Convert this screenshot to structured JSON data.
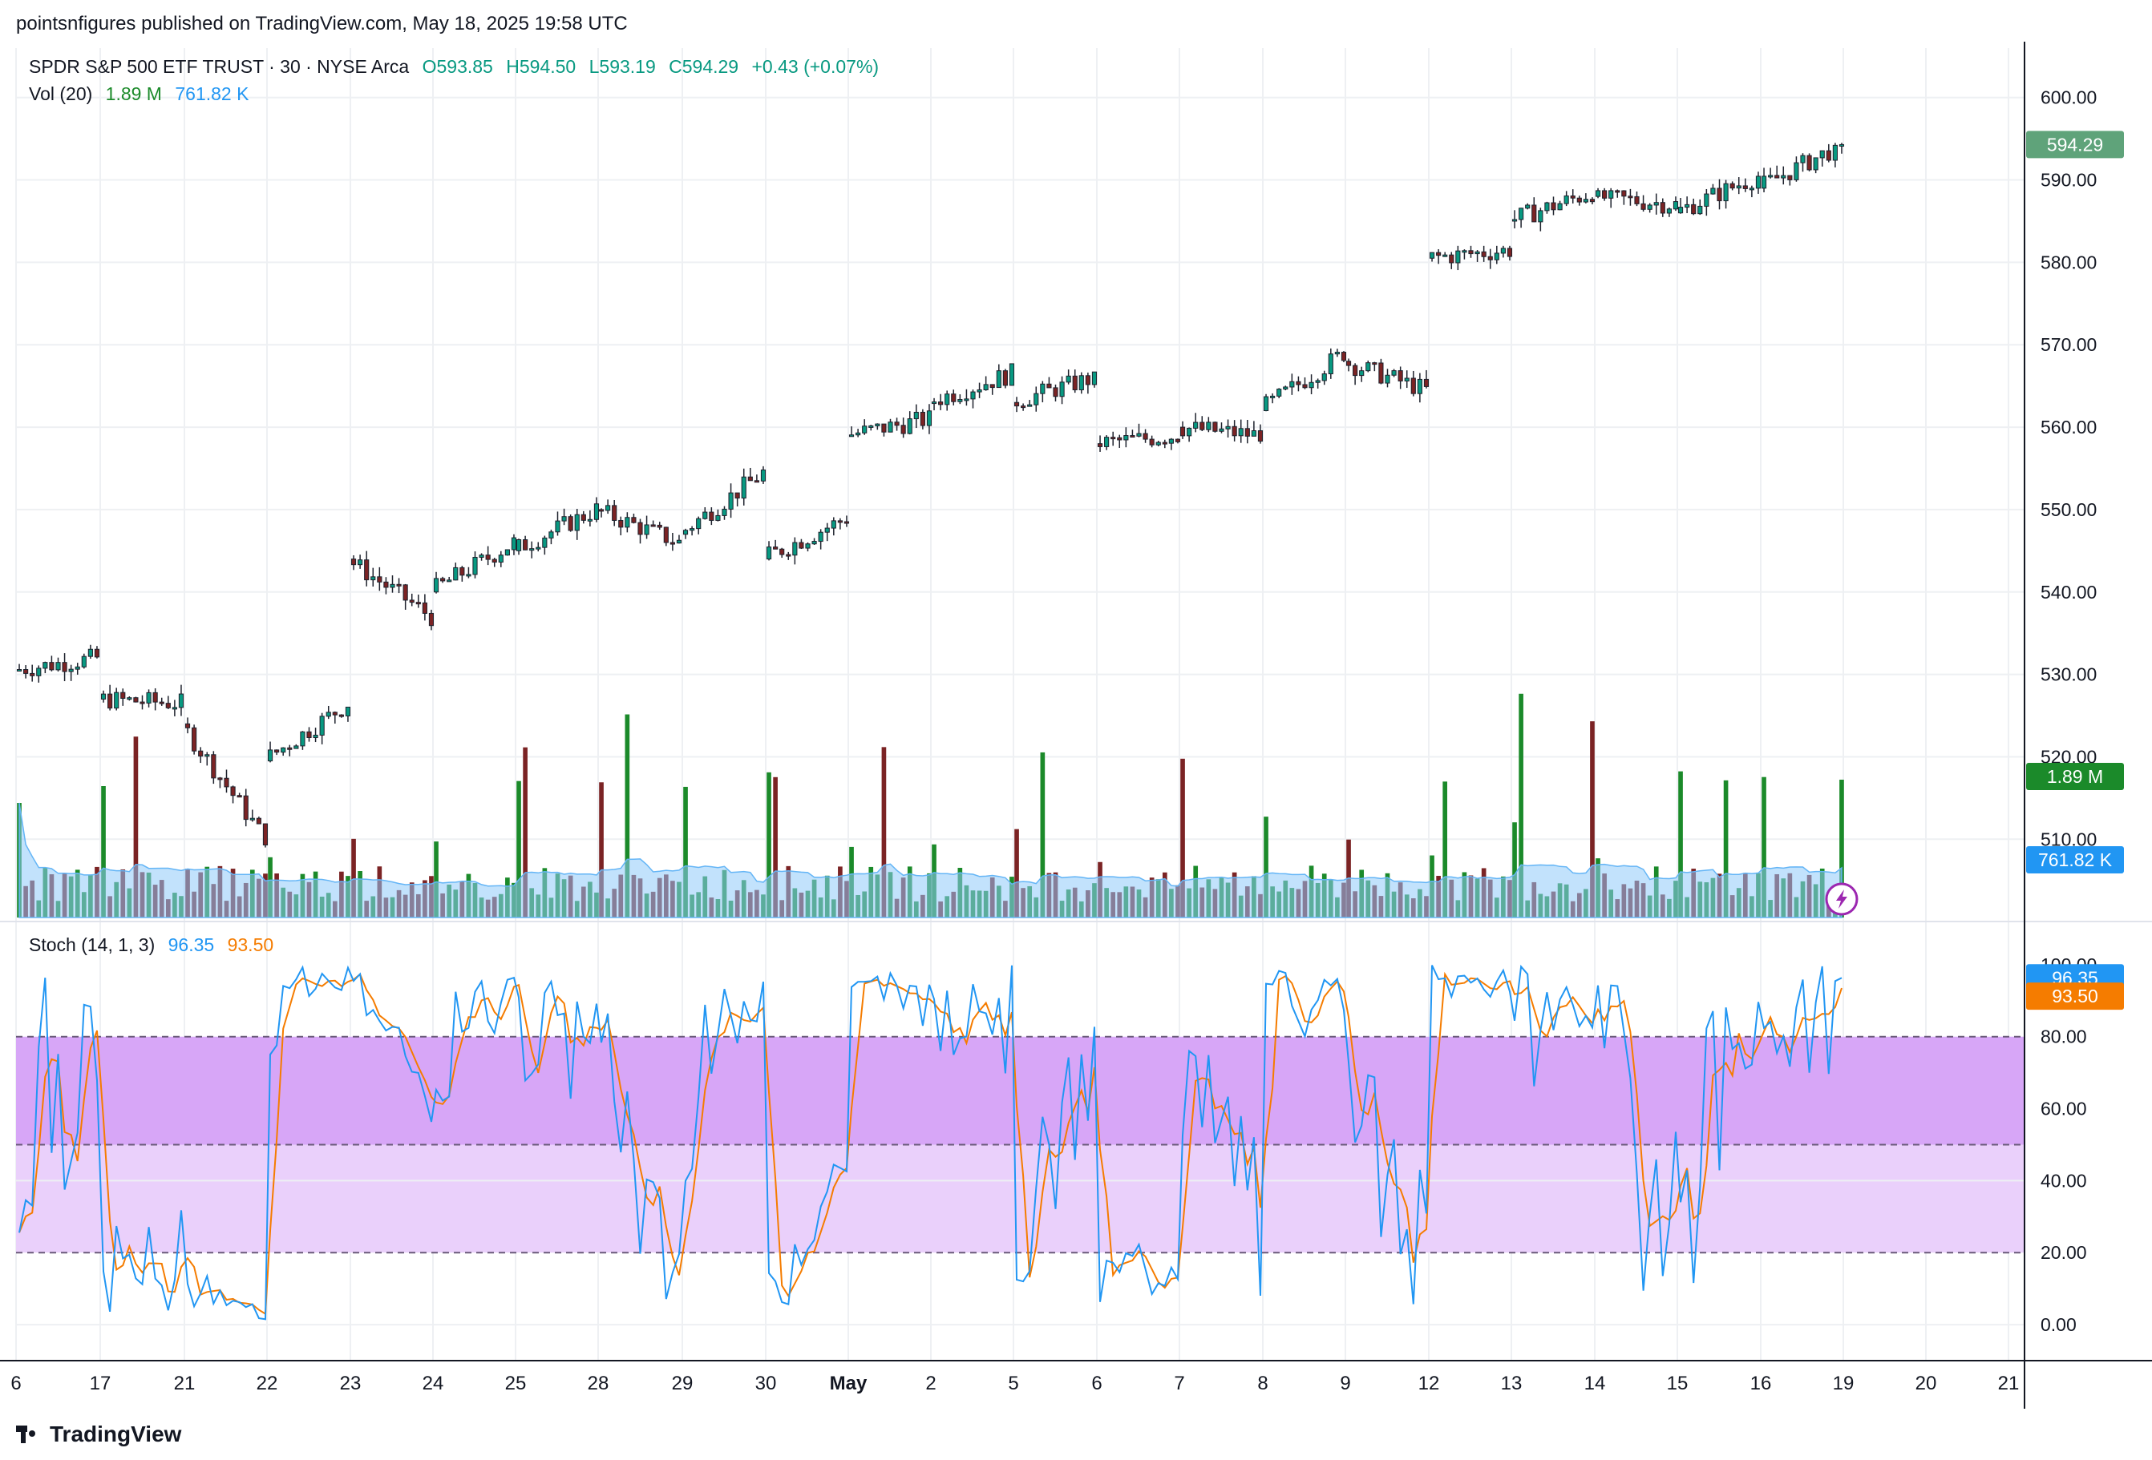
{
  "header": {
    "published": "pointsnfigures published on TradingView.com, May 18, 2025 19:58 UTC"
  },
  "legend": {
    "symbol": "SPDR S&P 500 ETF TRUST · 30 · NYSE Arca",
    "open": "O593.85",
    "high": "H594.50",
    "low": "L593.19",
    "close": "C594.29",
    "change": "+0.43 (+0.07%)",
    "vol_label": "Vol (20)",
    "vol_value": "1.89 M",
    "vol_ma": "761.82 K",
    "stoch_label": "Stoch (14, 1, 3)",
    "stoch_k": "96.35",
    "stoch_d": "93.50"
  },
  "price_badges": {
    "last_price": "594.29",
    "volume": "1.89 M",
    "volume_ma": "761.82 K",
    "stoch_k": "96.35",
    "stoch_d": "93.50"
  },
  "footer": {
    "brand": "TradingView"
  },
  "colors": {
    "up": "#089981",
    "down": "#7b2324",
    "vol_up": "#1b8a2a",
    "vol_down": "#7b2324",
    "vol_ma_fill": "#90caf9",
    "stoch_k": "#2196f3",
    "stoch_d": "#f57c00",
    "band_inner": "#d7a6f7",
    "band_outer": "#ead0fb"
  },
  "chart_data": [
    {
      "type": "candlestick",
      "title": "SPDR S&P 500 ETF TRUST · 30 · NYSE Arca",
      "interval": "30",
      "y_ticks": [
        "600.00",
        "590.00",
        "580.00",
        "570.00",
        "560.00",
        "550.00",
        "540.00",
        "530.00",
        "520.00",
        "510.00"
      ],
      "ylim": [
        500.5,
        606
      ],
      "x_ticks": [
        "6",
        "17",
        "21",
        "22",
        "23",
        "24",
        "25",
        "28",
        "29",
        "30",
        "May",
        "2",
        "5",
        "6",
        "7",
        "8",
        "9",
        "12",
        "13",
        "14",
        "15",
        "16",
        "19",
        "20",
        "21"
      ],
      "last_price": 594.29,
      "daily_anchors": [
        {
          "day": "16",
          "open": 530.5,
          "close": 532.0,
          "high": 535.0,
          "low": 529.0
        },
        {
          "day": "17",
          "open": 527.0,
          "close": 526.5,
          "high": 531.0,
          "low": 523.5
        },
        {
          "day": "21",
          "open": 524.0,
          "close": 510.0,
          "high": 525.0,
          "low": 509.0
        },
        {
          "day": "22",
          "open": 519.5,
          "close": 526.5,
          "high": 530.0,
          "low": 519.0
        },
        {
          "day": "23",
          "open": 544.0,
          "close": 537.0,
          "high": 545.5,
          "low": 534.5
        },
        {
          "day": "24",
          "open": 540.0,
          "close": 546.0,
          "high": 547.0,
          "low": 539.0
        },
        {
          "day": "25",
          "open": 545.0,
          "close": 550.0,
          "high": 551.5,
          "low": 544.0
        },
        {
          "day": "28",
          "open": 550.0,
          "close": 546.0,
          "high": 553.5,
          "low": 545.0
        },
        {
          "day": "29",
          "open": 547.0,
          "close": 554.5,
          "high": 555.5,
          "low": 546.0
        },
        {
          "day": "30",
          "open": 544.0,
          "close": 549.0,
          "high": 557.0,
          "low": 542.0
        },
        {
          "day": "May 1",
          "open": 559.0,
          "close": 561.0,
          "high": 564.0,
          "low": 558.0
        },
        {
          "day": "2",
          "open": 563.0,
          "close": 566.5,
          "high": 568.0,
          "low": 562.0
        },
        {
          "day": "5",
          "open": 563.0,
          "close": 566.0,
          "high": 567.0,
          "low": 561.5
        },
        {
          "day": "6",
          "open": 558.0,
          "close": 559.0,
          "high": 563.0,
          "low": 557.0
        },
        {
          "day": "7",
          "open": 560.0,
          "close": 559.0,
          "high": 562.5,
          "low": 558.0
        },
        {
          "day": "8",
          "open": 562.0,
          "close": 569.0,
          "high": 570.5,
          "low": 556.5
        },
        {
          "day": "9",
          "open": 568.0,
          "close": 564.5,
          "high": 569.0,
          "low": 563.0
        },
        {
          "day": "12",
          "open": 580.5,
          "close": 581.5,
          "high": 582.0,
          "low": 577.5
        },
        {
          "day": "13",
          "open": 585.0,
          "close": 588.5,
          "high": 589.5,
          "low": 582.0
        },
        {
          "day": "14",
          "open": 588.0,
          "close": 587.0,
          "high": 589.0,
          "low": 585.5
        },
        {
          "day": "15",
          "open": 586.0,
          "close": 590.5,
          "high": 591.0,
          "low": 585.0
        },
        {
          "day": "16",
          "open": 589.0,
          "close": 594.29,
          "high": 594.5,
          "low": 588.5
        }
      ]
    },
    {
      "type": "bar",
      "title": "Vol (20)",
      "series": [
        {
          "name": "Vol (20)",
          "last": "1.89 M"
        },
        {
          "name": "Vol MA",
          "last": "761.82 K"
        }
      ]
    },
    {
      "type": "line",
      "title": "Stoch (14, 1, 3)",
      "y_ticks": [
        "100.00",
        "80.00",
        "60.00",
        "40.00",
        "20.00",
        "0.00"
      ],
      "ylim": [
        -10,
        112
      ],
      "bands": {
        "upper": 80,
        "middle": 50,
        "lower": 20
      },
      "series": [
        {
          "name": "%K",
          "last": 96.35
        },
        {
          "name": "%D",
          "last": 93.5
        }
      ]
    }
  ]
}
